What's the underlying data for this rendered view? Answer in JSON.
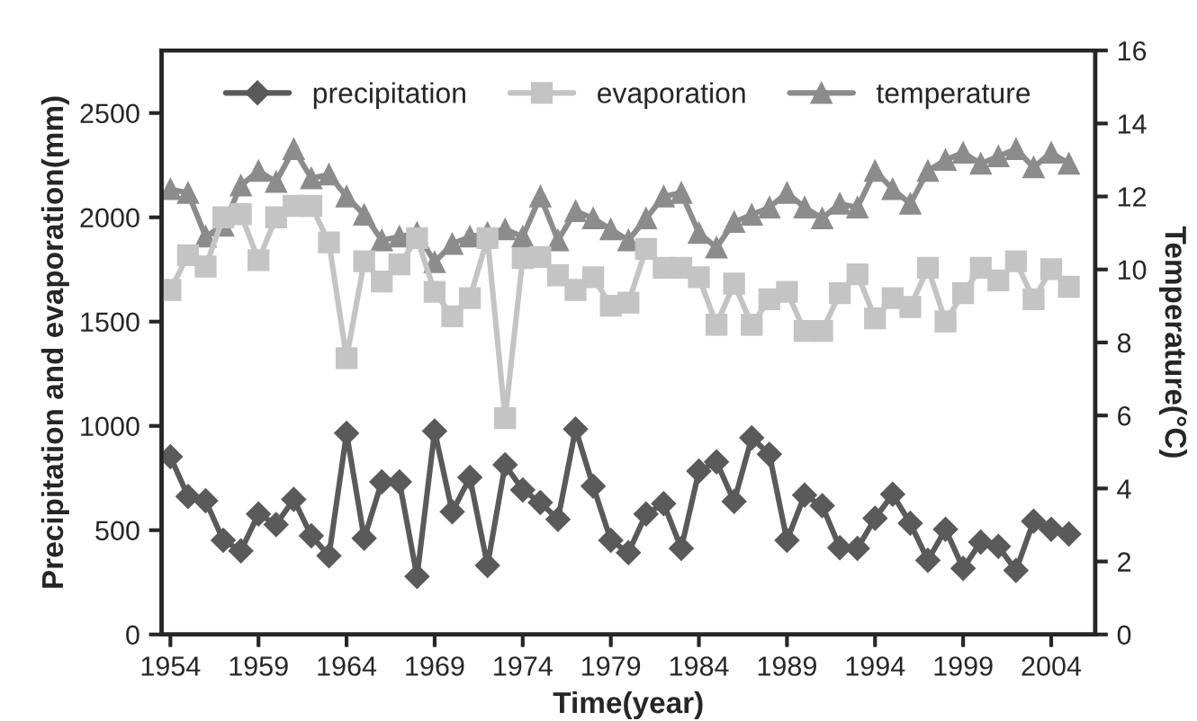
{
  "chart_data": {
    "type": "line",
    "xlabel": "Time(year)",
    "ylabel": "Precipitation and evaporation(mm)",
    "y2label": "Temperature(°C)",
    "x": [
      1954,
      1955,
      1956,
      1957,
      1958,
      1959,
      1960,
      1961,
      1962,
      1963,
      1964,
      1965,
      1966,
      1967,
      1968,
      1969,
      1970,
      1971,
      1972,
      1973,
      1974,
      1975,
      1976,
      1977,
      1978,
      1979,
      1980,
      1981,
      1982,
      1983,
      1984,
      1985,
      1986,
      1987,
      1988,
      1989,
      1990,
      1991,
      1992,
      1993,
      1994,
      1995,
      1996,
      1997,
      1998,
      1999,
      2000,
      2001,
      2002,
      2003,
      2004,
      2005
    ],
    "series": [
      {
        "name": "precipitation",
        "color": "#5a5a5a",
        "marker": "diamond",
        "values": [
          852,
          662,
          641,
          452,
          401,
          578,
          527,
          648,
          473,
          377,
          965,
          461,
          732,
          732,
          278,
          975,
          588,
          753,
          331,
          814,
          693,
          633,
          552,
          985,
          711,
          452,
          392,
          578,
          627,
          413,
          783,
          828,
          638,
          943,
          864,
          452,
          668,
          617,
          416,
          413,
          557,
          672,
          533,
          356,
          504,
          317,
          443,
          422,
          307,
          543,
          504,
          482
        ]
      },
      {
        "name": "evaporation",
        "color": "#c4c4c4",
        "marker": "square",
        "values": [
          1652,
          1818,
          1764,
          2000,
          2015,
          1795,
          2000,
          2055,
          2055,
          1880,
          1325,
          1789,
          1692,
          1774,
          1900,
          1643,
          1525,
          1613,
          1900,
          1037,
          1804,
          1810,
          1722,
          1652,
          1713,
          1576,
          1591,
          1849,
          1758,
          1758,
          1713,
          1485,
          1682,
          1485,
          1607,
          1643,
          1455,
          1455,
          1636,
          1727,
          1516,
          1613,
          1570,
          1758,
          1501,
          1636,
          1758,
          1698,
          1789,
          1607,
          1752,
          1667
        ]
      },
      {
        "name": "temperature",
        "color": "#8c8c8c",
        "marker": "triangle",
        "axis": "y2",
        "values": [
          12.2,
          12.1,
          10.9,
          11.2,
          12.3,
          12.7,
          12.4,
          13.3,
          12.5,
          12.6,
          12.0,
          11.5,
          10.8,
          10.9,
          11.0,
          10.2,
          10.7,
          10.9,
          11.0,
          11.1,
          10.9,
          12.0,
          10.8,
          11.6,
          11.4,
          11.1,
          10.8,
          11.4,
          12.0,
          12.1,
          11.0,
          10.6,
          11.3,
          11.5,
          11.7,
          12.1,
          11.7,
          11.4,
          11.8,
          11.7,
          12.7,
          12.2,
          11.8,
          12.7,
          13.0,
          13.2,
          12.9,
          13.1,
          13.3,
          12.8,
          13.2,
          12.9
        ]
      }
    ],
    "xlim": [
      1953.5,
      2006.5
    ],
    "xticks": [
      1954,
      1959,
      1964,
      1969,
      1974,
      1979,
      1984,
      1989,
      1994,
      1999,
      2004
    ],
    "ylim": [
      0,
      2800
    ],
    "yticks": [
      0,
      500,
      1000,
      1500,
      2000,
      2500
    ],
    "y2lim": [
      0,
      16
    ],
    "y2ticks": [
      0,
      2,
      4,
      6,
      8,
      10,
      12,
      14,
      16
    ],
    "grid": false,
    "legend": "top",
    "line_style": "solid"
  }
}
